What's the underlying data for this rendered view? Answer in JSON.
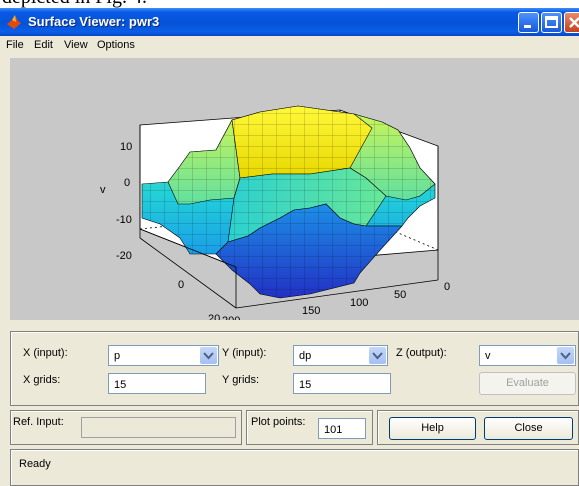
{
  "caption_text": "depicted in Fig. 4.",
  "window": {
    "title": "Surface Viewer: pwr3",
    "icon": "matlab-logo-icon"
  },
  "menu": [
    "File",
    "Edit",
    "View",
    "Options"
  ],
  "chart_data": {
    "type": "surface",
    "title": "",
    "xlabel": "p",
    "ylabel": "dp",
    "zlabel": "v",
    "x_ticks": [
      0,
      50,
      100,
      150,
      200
    ],
    "y_ticks": [
      0,
      20
    ],
    "z_ticks": [
      10,
      0,
      -10,
      -20
    ],
    "xlim": [
      0,
      200
    ],
    "ylim": [
      0,
      20
    ],
    "zlim": [
      -20,
      10
    ],
    "grids": [
      15,
      15
    ],
    "colormap": [
      "#2030c0",
      "#1ec8e0",
      "#a8f07a",
      "#f8f020"
    ]
  },
  "controls": {
    "x_input_label": "X (input):",
    "x_input_value": "p",
    "y_input_label": "Y (input):",
    "y_input_value": "dp",
    "z_output_label": "Z (output):",
    "z_output_value": "v",
    "x_grids_label": "X grids:",
    "x_grids_value": "15",
    "y_grids_label": "Y grids:",
    "y_grids_value": "15",
    "evaluate_label": "Evaluate",
    "ref_input_label": "Ref. Input:",
    "ref_input_value": "",
    "plot_points_label": "Plot points:",
    "plot_points_value": "101",
    "help_label": "Help",
    "close_label": "Close"
  },
  "status": "Ready"
}
